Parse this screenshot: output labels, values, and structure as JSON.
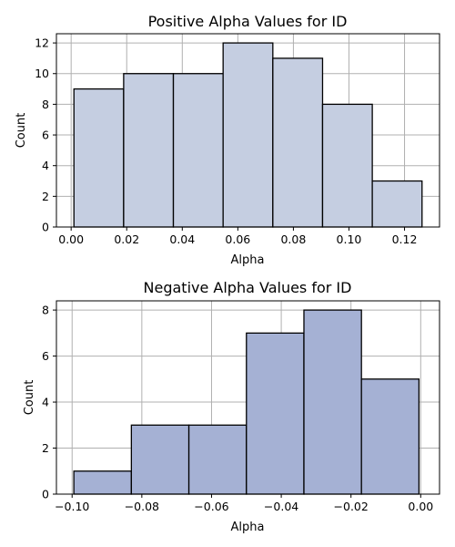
{
  "colors": {
    "positive_bar": "#c5cee1",
    "negative_bar": "#a5b1d4",
    "bar_edge": "#000000",
    "grid": "#b0b0b0"
  },
  "chart_data": [
    {
      "type": "bar",
      "subtype": "histogram",
      "title": "Positive Alpha Values for ID",
      "xlabel": "Alpha",
      "ylabel": "Count",
      "bins": [
        {
          "x0": 0.001,
          "x1": 0.0189,
          "count": 9
        },
        {
          "x0": 0.0189,
          "x1": 0.0368,
          "count": 10
        },
        {
          "x0": 0.0368,
          "x1": 0.0547,
          "count": 10
        },
        {
          "x0": 0.0547,
          "x1": 0.0726,
          "count": 12
        },
        {
          "x0": 0.0726,
          "x1": 0.0905,
          "count": 11
        },
        {
          "x0": 0.0905,
          "x1": 0.1084,
          "count": 8
        },
        {
          "x0": 0.1084,
          "x1": 0.1263,
          "count": 3
        }
      ],
      "xlim": [
        -0.0053,
        0.1326
      ],
      "ylim": [
        0,
        12.6
      ],
      "xticks": [
        0.0,
        0.02,
        0.04,
        0.06,
        0.08,
        0.1,
        0.12
      ],
      "xtick_labels": [
        "0.00",
        "0.02",
        "0.04",
        "0.06",
        "0.08",
        "0.10",
        "0.12"
      ],
      "yticks": [
        0,
        2,
        4,
        6,
        8,
        10,
        12
      ],
      "ytick_labels": [
        "0",
        "2",
        "4",
        "6",
        "8",
        "10",
        "12"
      ],
      "grid": true,
      "color_key": "positive_bar"
    },
    {
      "type": "bar",
      "subtype": "histogram",
      "title": "Negative Alpha Values for ID",
      "xlabel": "Alpha",
      "ylabel": "Count",
      "bins": [
        {
          "x0": -0.0995,
          "x1": -0.083,
          "count": 1
        },
        {
          "x0": -0.083,
          "x1": -0.0665,
          "count": 3
        },
        {
          "x0": -0.0665,
          "x1": -0.05,
          "count": 3
        },
        {
          "x0": -0.05,
          "x1": -0.0335,
          "count": 7
        },
        {
          "x0": -0.0335,
          "x1": -0.017,
          "count": 8
        },
        {
          "x0": -0.017,
          "x1": -0.0005,
          "count": 5
        }
      ],
      "xlim": [
        -0.1045,
        0.0054
      ],
      "ylim": [
        0,
        8.4
      ],
      "xticks": [
        -0.1,
        -0.08,
        -0.06,
        -0.04,
        -0.02,
        0.0
      ],
      "xtick_labels": [
        "−0.10",
        "−0.08",
        "−0.06",
        "−0.04",
        "−0.02",
        "0.00"
      ],
      "yticks": [
        0,
        2,
        4,
        6,
        8
      ],
      "ytick_labels": [
        "0",
        "2",
        "4",
        "6",
        "8"
      ],
      "grid": true,
      "color_key": "negative_bar"
    }
  ]
}
